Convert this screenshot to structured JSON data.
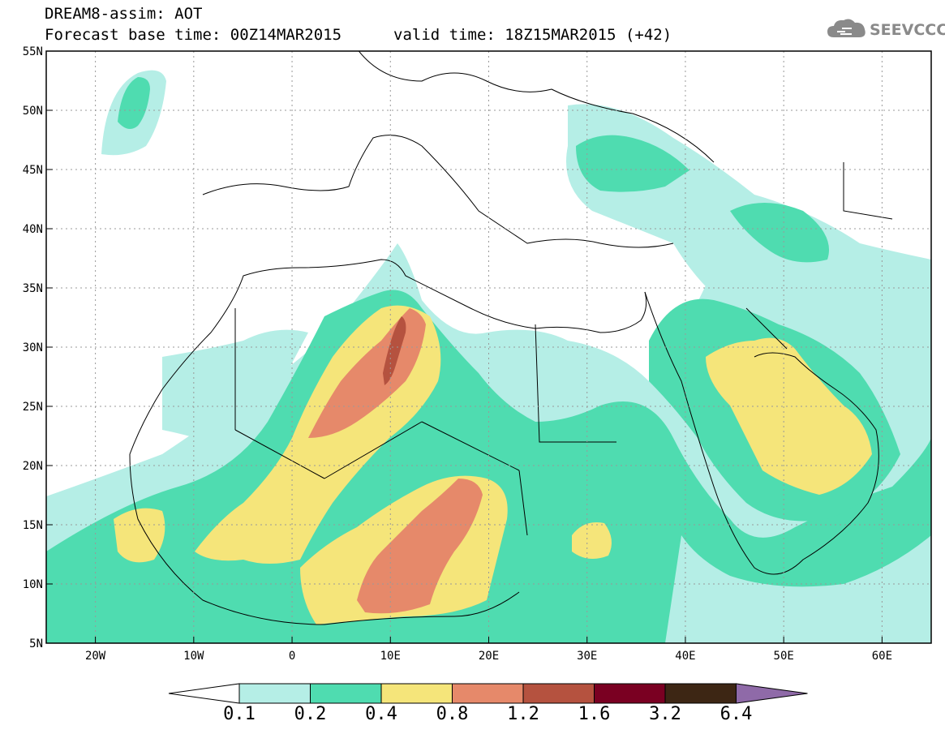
{
  "title": {
    "line1": "DREAM8-assim: AOT",
    "line2": "Forecast base time: 00Z14MAR2015",
    "valid": "valid time: 18Z15MAR2015 (+42)"
  },
  "logo": {
    "text": "SEEVCCC",
    "icon": "cloud-icon"
  },
  "map": {
    "lat_labels": [
      "55N",
      "50N",
      "45N",
      "40N",
      "35N",
      "30N",
      "25N",
      "20N",
      "15N",
      "10N",
      "5N"
    ],
    "lon_labels": [
      "20W",
      "10W",
      "0",
      "10E",
      "20E",
      "30E",
      "40E",
      "50E",
      "60E"
    ],
    "lon_range": [
      -25,
      65
    ],
    "lat_range": [
      5,
      55
    ],
    "grid": "dotted"
  },
  "colorbar": {
    "thresholds": [
      "0.1",
      "0.2",
      "0.4",
      "0.8",
      "1.2",
      "1.6",
      "3.2",
      "6.4"
    ],
    "colors": [
      "#b5eee6",
      "#4fdcb0",
      "#f5e57a",
      "#e6896a",
      "#b5523f",
      "#7a0022",
      "#3d2614",
      "#8f6aa8"
    ]
  }
}
